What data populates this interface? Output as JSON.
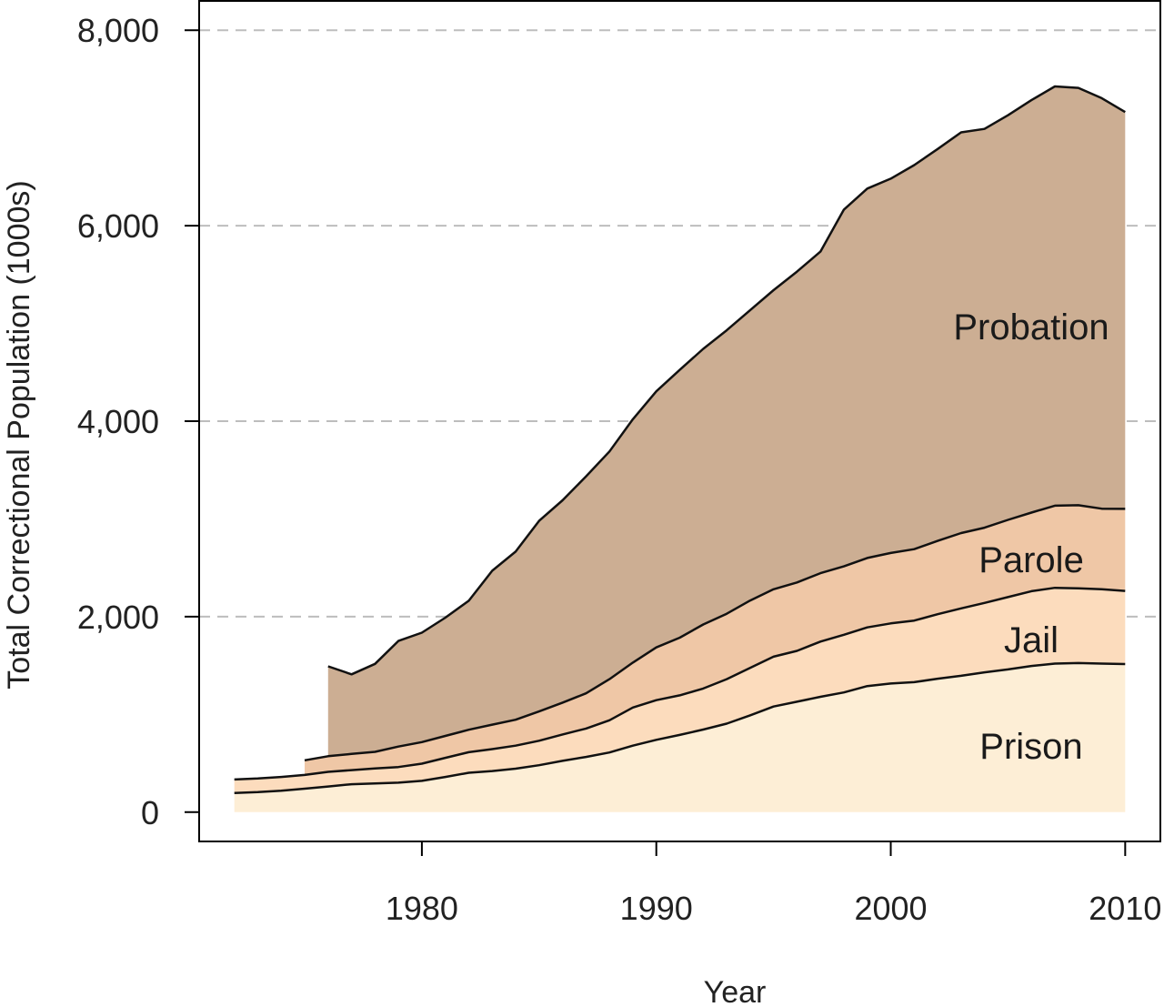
{
  "chart_data": {
    "type": "area",
    "stacked": true,
    "title": "",
    "xlabel": "Year",
    "ylabel": "Total Correctional Population (1000s)",
    "xlim": [
      1970.5,
      2011.5
    ],
    "ylim": [
      -300,
      8300
    ],
    "x_ticks": [
      1980,
      1990,
      2000,
      2010
    ],
    "x_tick_labels": [
      "1980",
      "1990",
      "2000",
      "2010"
    ],
    "y_ticks": [
      0,
      2000,
      4000,
      6000,
      8000
    ],
    "y_tick_labels": [
      "0",
      "2,000",
      "4,000",
      "6,000",
      "8,000"
    ],
    "grid": {
      "y": true,
      "style": "dashed",
      "color": "#bdbdbd"
    },
    "legend": "inline labels",
    "x": [
      1972,
      1973,
      1974,
      1975,
      1976,
      1977,
      1978,
      1979,
      1980,
      1981,
      1982,
      1983,
      1984,
      1985,
      1986,
      1987,
      1988,
      1989,
      1990,
      1991,
      1992,
      1993,
      1994,
      1995,
      1996,
      1997,
      1998,
      1999,
      2000,
      2001,
      2002,
      2003,
      2004,
      2005,
      2006,
      2007,
      2008,
      2009,
      2010
    ],
    "series": [
      {
        "name": "Prison",
        "color": "#fdeed6",
        "values": [
          196,
          204,
          218,
          240,
          262,
          285,
          294,
          301,
          320,
          360,
          403,
          420,
          445,
          480,
          525,
          565,
          610,
          680,
          740,
          790,
          845,
          905,
          990,
          1080,
          1130,
          1180,
          1225,
          1290,
          1316,
          1330,
          1365,
          1395,
          1430,
          1460,
          1495,
          1520,
          1525,
          1520,
          1515
        ]
      },
      {
        "name": "Jail",
        "color": "#fcdcbd",
        "values": [
          138,
          140,
          142,
          140,
          150,
          145,
          153,
          160,
          176,
          195,
          210,
          225,
          235,
          250,
          270,
          290,
          330,
          390,
          405,
          405,
          420,
          455,
          485,
          510,
          520,
          565,
          590,
          600,
          615,
          630,
          660,
          690,
          710,
          740,
          765,
          775,
          765,
          760,
          748
        ]
      },
      {
        "name": "Parole",
        "color": "#efc7a6",
        "values": [
          null,
          null,
          null,
          150,
          160,
          165,
          170,
          210,
          220,
          225,
          230,
          250,
          265,
          300,
          325,
          360,
          420,
          460,
          540,
          590,
          655,
          670,
          690,
          690,
          700,
          700,
          700,
          710,
          720,
          730,
          750,
          770,
          770,
          790,
          805,
          840,
          850,
          825,
          840
        ]
      },
      {
        "name": "Probation",
        "color": "#ccae93",
        "values": [
          null,
          null,
          null,
          null,
          920,
          815,
          900,
          1080,
          1120,
          1210,
          1320,
          1575,
          1720,
          1950,
          2070,
          2220,
          2330,
          2490,
          2620,
          2740,
          2820,
          2900,
          2970,
          3060,
          3180,
          3290,
          3650,
          3780,
          3830,
          3930,
          4010,
          4100,
          4080,
          4140,
          4220,
          4290,
          4270,
          4200,
          4060
        ]
      }
    ],
    "labels": [
      "Probation",
      "Parole",
      "Jail",
      "Prison"
    ]
  }
}
